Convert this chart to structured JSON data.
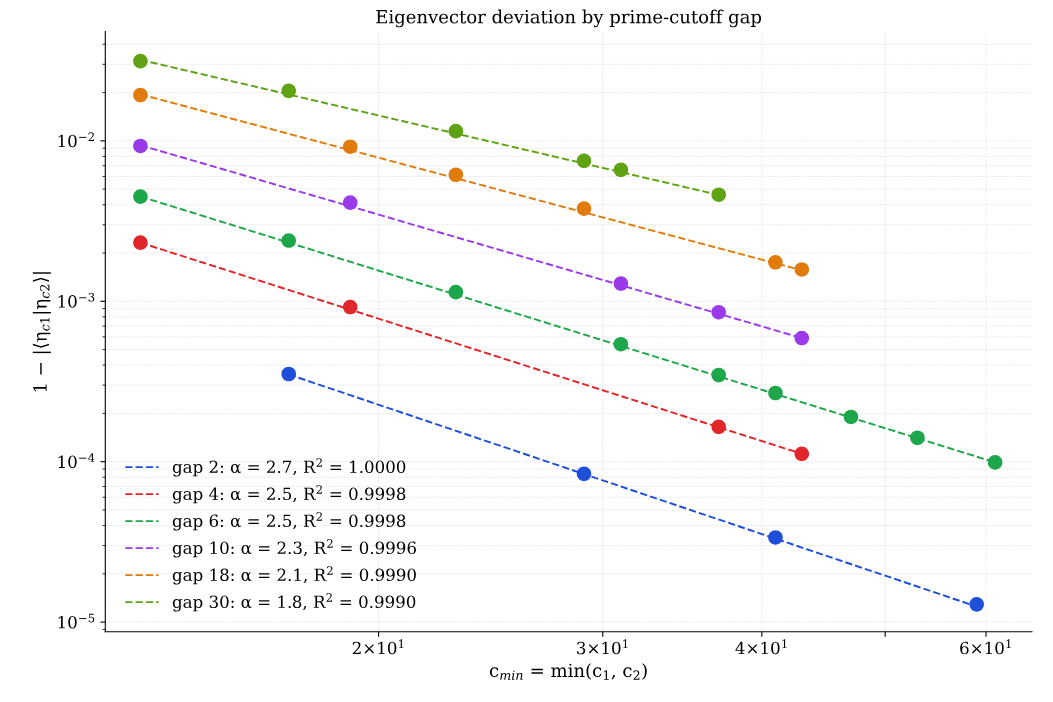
{
  "chart_data": {
    "type": "scatter",
    "title": "Eigenvector deviation by prime-cutoff gap",
    "xlabel": "c$_{min}$ = min(c$_{1}$, c$_{2}$)",
    "ylabel": "1 − |⟨η$_{c1}$|η$_{c2}$⟩|",
    "log": "xy",
    "xlim": [
      12.2,
      65.2
    ],
    "ylim": [
      8.7e-06,
      0.048
    ],
    "xticks": [
      {
        "value": 20,
        "label": "2×10$^{1}$"
      },
      {
        "value": 30,
        "label": "3×10$^{1}$"
      },
      {
        "value": 40,
        "label": "4×10$^{1}$"
      },
      {
        "value": 50,
        "label": null
      },
      {
        "value": 60,
        "label": "6×10$^{1}$"
      }
    ],
    "yticks": [
      {
        "value": 1e-05,
        "label": "10$^{−5}$"
      },
      {
        "value": 0.0001,
        "label": "10$^{−4}$"
      },
      {
        "value": 0.001,
        "label": "10$^{−3}$"
      },
      {
        "value": 0.01,
        "label": "10$^{−2}$"
      }
    ],
    "grid": true,
    "legend": "bottom left",
    "series": [
      {
        "type": "line",
        "line_style": "dashed",
        "name": "gap 2: α = 2.7, R$^{2}$ = 1.0000",
        "color": "#1f4fd8",
        "x": [
          17,
          59
        ],
        "values": [
          0.00035,
          1.25e-05
        ]
      },
      {
        "type": "line",
        "line_style": "dashed",
        "name": "gap 4: α = 2.5, R$^{2}$ = 0.9998",
        "color": "#e0262b",
        "x": [
          13,
          43
        ],
        "values": [
          0.00232,
          0.000112
        ]
      },
      {
        "type": "line",
        "line_style": "dashed",
        "name": "gap 6: α = 2.5, R$^{2}$ = 0.9998",
        "color": "#1ea64a",
        "x": [
          13,
          61
        ],
        "values": [
          0.0045,
          9.9e-05
        ]
      },
      {
        "type": "line",
        "line_style": "dashed",
        "name": "gap 10: α = 2.3, R$^{2}$ = 0.9996",
        "color": "#9b3ae8",
        "x": [
          13,
          43
        ],
        "values": [
          0.0094,
          0.00059
        ]
      },
      {
        "type": "line",
        "line_style": "dashed",
        "name": "gap 18: α = 2.1, R$^{2}$ = 0.9990",
        "color": "#e07b0c",
        "x": [
          13,
          43
        ],
        "values": [
          0.0195,
          0.00156
        ]
      },
      {
        "type": "line",
        "line_style": "dashed",
        "name": "gap 30: α = 1.8, R$^{2}$ = 0.9990",
        "color": "#5fa314",
        "x": [
          13,
          37
        ],
        "values": [
          0.032,
          0.0046
        ]
      },
      {
        "marker": "circle",
        "color": "#1f4fd8",
        "x": [
          17,
          29,
          41,
          59
        ],
        "values": [
          0.000352,
          8.4e-05,
          3.37e-05,
          1.29e-05
        ]
      },
      {
        "marker": "circle",
        "color": "#e0262b",
        "x": [
          13,
          19,
          37,
          43
        ],
        "values": [
          0.00232,
          0.00092,
          0.000165,
          0.000112
        ]
      },
      {
        "marker": "circle",
        "color": "#1ea64a",
        "x": [
          13,
          17,
          23,
          31,
          37,
          41,
          47,
          53,
          61
        ],
        "values": [
          0.00449,
          0.00239,
          0.00114,
          0.00054,
          0.000347,
          0.000268,
          0.00019,
          0.000141,
          9.9e-05
        ]
      },
      {
        "marker": "circle",
        "color": "#9b3ae8",
        "x": [
          13,
          19,
          31,
          37,
          43
        ],
        "values": [
          0.0093,
          0.00412,
          0.00129,
          0.000855,
          0.00059
        ]
      },
      {
        "marker": "circle",
        "color": "#e07b0c",
        "x": [
          13,
          19,
          23,
          29,
          41,
          43
        ],
        "values": [
          0.0193,
          0.0092,
          0.00615,
          0.00378,
          0.00175,
          0.00158
        ]
      },
      {
        "marker": "circle",
        "color": "#5fa314",
        "x": [
          13,
          17,
          23,
          29,
          31,
          37
        ],
        "values": [
          0.0314,
          0.0205,
          0.0115,
          0.00751,
          0.0066,
          0.00462
        ]
      }
    ]
  }
}
